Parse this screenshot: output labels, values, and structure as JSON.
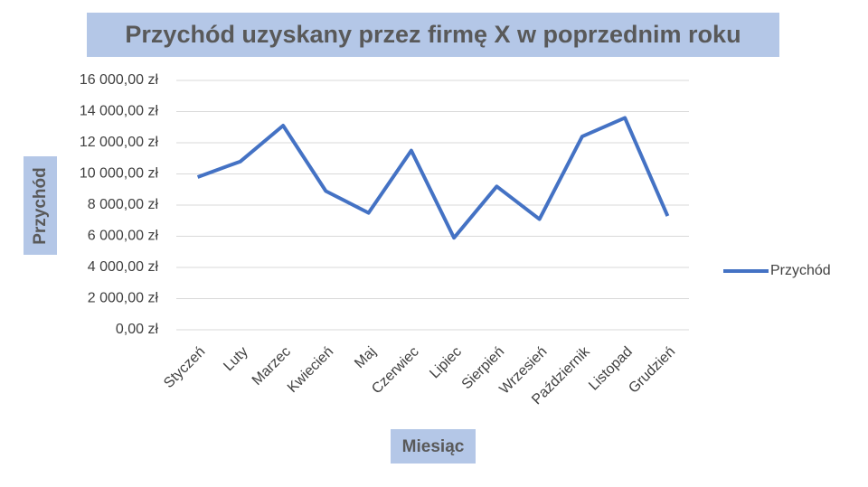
{
  "chart_data": {
    "type": "line",
    "title": "Przychód uzyskany przez firmę X w poprzednim roku",
    "x_label": "Miesiąc",
    "y_label": "Przychód",
    "categories": [
      "Styczeń",
      "Luty",
      "Marzec",
      "Kwiecień",
      "Maj",
      "Czerwiec",
      "Lipiec",
      "Sierpień",
      "Wrzesień",
      "Październik",
      "Listopad",
      "Grudzień"
    ],
    "series": [
      {
        "name": "Przychód",
        "color": "#4472c4",
        "values": [
          9800,
          10800,
          13100,
          8900,
          7500,
          11500,
          5900,
          9200,
          7100,
          12400,
          13600,
          7300
        ]
      }
    ],
    "ylim": [
      0,
      16000
    ],
    "yticks": [
      {
        "value": 0,
        "label": "0,00 zł"
      },
      {
        "value": 2000,
        "label": "2 000,00 zł"
      },
      {
        "value": 4000,
        "label": "4 000,00 zł"
      },
      {
        "value": 6000,
        "label": "6 000,00 zł"
      },
      {
        "value": 8000,
        "label": "8 000,00 zł"
      },
      {
        "value": 10000,
        "label": "10 000,00 zł"
      },
      {
        "value": 12000,
        "label": "12 000,00 zł"
      },
      {
        "value": 14000,
        "label": "14 000,00 zł"
      },
      {
        "value": 16000,
        "label": "16 000,00 zł"
      }
    ],
    "grid": true,
    "legend": "right"
  }
}
